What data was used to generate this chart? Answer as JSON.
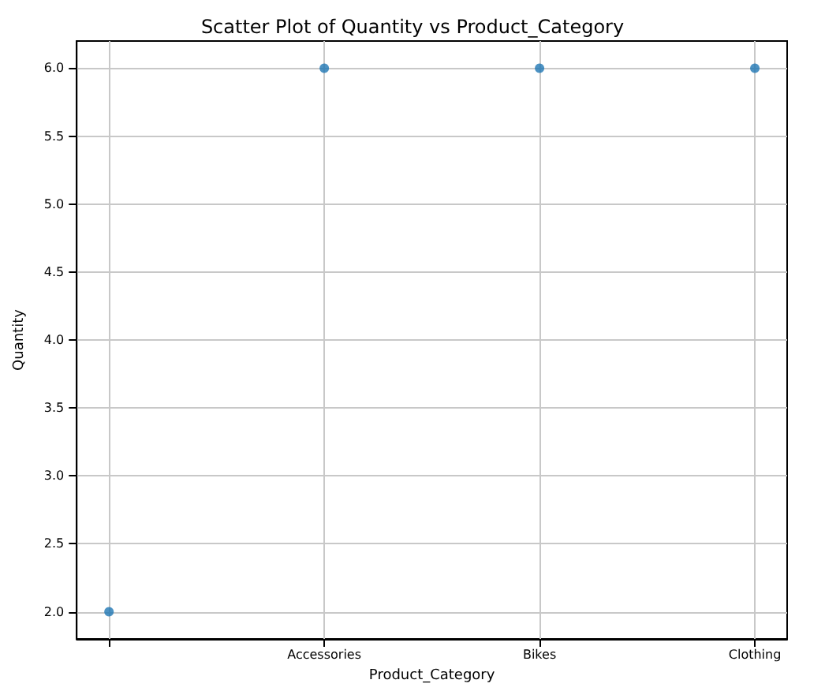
{
  "chart_data": {
    "type": "scatter",
    "title": "Scatter Plot of Quantity vs Product_Category",
    "xlabel": "Product_Category",
    "ylabel": "Quantity",
    "categories": [
      null,
      "Accessories",
      "Bikes",
      "Clothing"
    ],
    "series": [
      {
        "color": "#1f77b4",
        "values": [
          2,
          6,
          6,
          6
        ]
      }
    ],
    "ylim": [
      1.8,
      6.2
    ],
    "yticks": [
      {
        "value": 2,
        "label": "2.0"
      },
      2.5,
      {
        "value": 3,
        "label": "3.0"
      },
      3.5,
      {
        "value": 4,
        "label": "4.0"
      },
      4.5,
      {
        "value": 5,
        "label": "5.0"
      },
      5.5,
      {
        "value": 6,
        "label": "6.0"
      }
    ],
    "grid": true,
    "marker": "circle"
  }
}
